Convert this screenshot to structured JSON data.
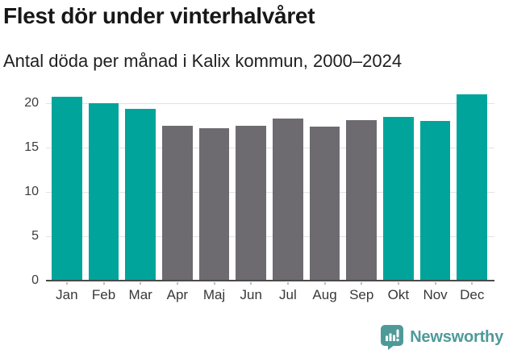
{
  "header": {
    "title": "Flest dör under vinterhalvåret",
    "subtitle": "Antal döda per månad i Kalix kommun, 2000–2024"
  },
  "chart_data": {
    "type": "bar",
    "title": "Flest dör under vinterhalvåret",
    "subtitle": "Antal döda per månad i Kalix kommun, 2000–2024",
    "categories": [
      "Jan",
      "Feb",
      "Mar",
      "Apr",
      "Maj",
      "Jun",
      "Jul",
      "Aug",
      "Sep",
      "Okt",
      "Nov",
      "Dec"
    ],
    "values": [
      20.7,
      20.0,
      19.4,
      17.5,
      17.2,
      17.5,
      18.3,
      17.4,
      18.1,
      18.5,
      18.0,
      21.0
    ],
    "highlighted": [
      true,
      true,
      true,
      false,
      false,
      false,
      false,
      false,
      false,
      true,
      true,
      true
    ],
    "xlabel": "",
    "ylabel": "",
    "yticks": [
      0,
      5,
      10,
      15,
      20
    ],
    "ylim": [
      0,
      22
    ],
    "grid": true,
    "legend": null,
    "colors": {
      "highlight": "#00a49b",
      "default": "#6e6b70",
      "gridline": "#e2e2e2",
      "axis": "#4a4a4a"
    }
  },
  "footer": {
    "brand": "Newsworthy",
    "brand_color": "#4e9a99",
    "logo_icon": "bar-chart-speech-bubble"
  }
}
